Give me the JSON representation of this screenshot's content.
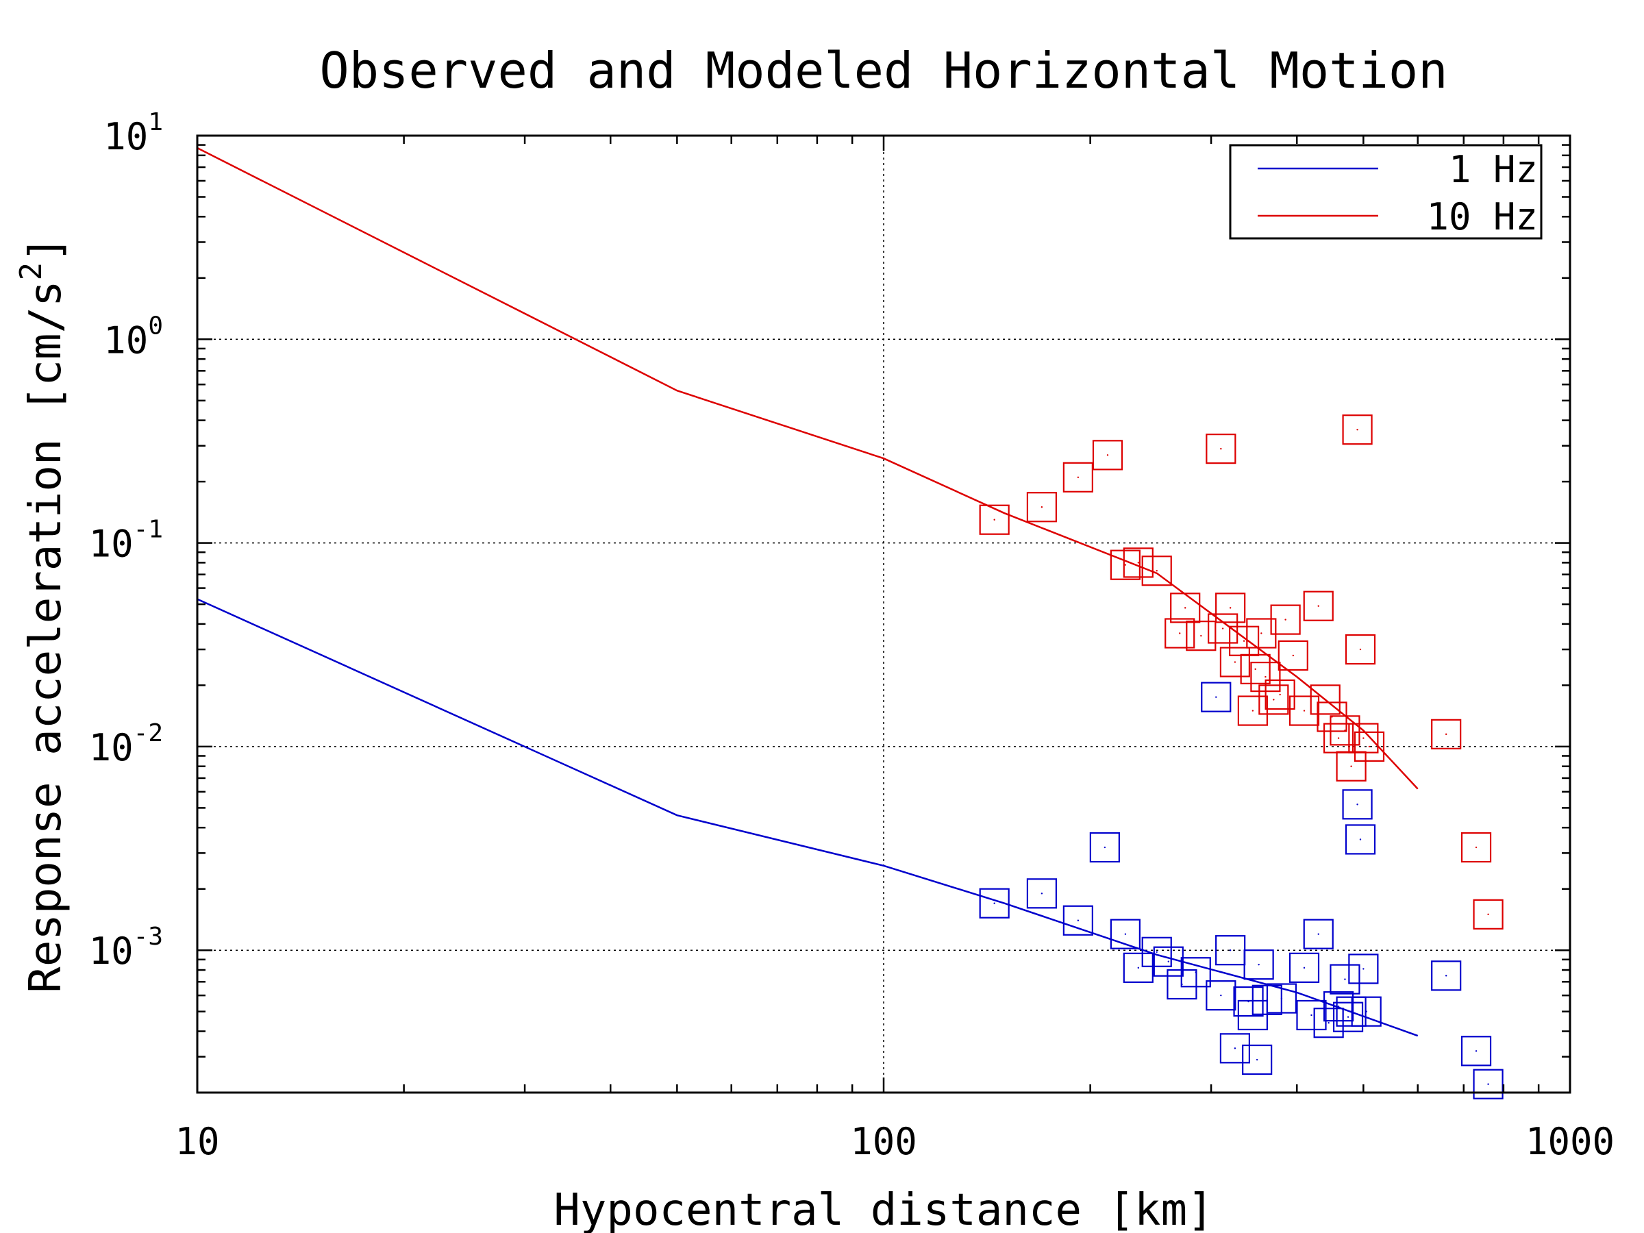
{
  "chart_data": {
    "type": "scatter",
    "title": "Observed and Modeled Horizontal Motion",
    "xlabel": "Hypocentral distance [km]",
    "ylabel": "Response acceleration [cm/s^2]",
    "x_scale": "log",
    "y_scale": "log",
    "xlim": [
      10,
      1000
    ],
    "ylim": [
      0.0002,
      10
    ],
    "x_ticks": [
      {
        "value": 10,
        "label": "10"
      },
      {
        "value": 100,
        "label": "100"
      },
      {
        "value": 1000,
        "label": "1000"
      }
    ],
    "y_ticks": [
      {
        "value": 10,
        "base": "10",
        "exp": "1"
      },
      {
        "value": 1,
        "base": "10",
        "exp": "0"
      },
      {
        "value": 0.1,
        "base": "10",
        "exp": "-1"
      },
      {
        "value": 0.01,
        "base": "10",
        "exp": "-2"
      },
      {
        "value": 0.001,
        "base": "10",
        "exp": "-3"
      }
    ],
    "grid": true,
    "legend_position": "top-right",
    "series": [
      {
        "name": "1 Hz",
        "kind": "line",
        "color": "#0000cc",
        "points": [
          [
            10,
            0.053
          ],
          [
            50,
            0.0046
          ],
          [
            100,
            0.0026
          ],
          [
            150,
            0.0017
          ],
          [
            250,
            0.00095
          ],
          [
            400,
            0.00062
          ],
          [
            600,
            0.00038
          ]
        ]
      },
      {
        "name": "10 Hz",
        "kind": "line",
        "color": "#dd0000",
        "points": [
          [
            10,
            8.7
          ],
          [
            50,
            0.56
          ],
          [
            100,
            0.26
          ],
          [
            150,
            0.14
          ],
          [
            250,
            0.071
          ],
          [
            400,
            0.022
          ],
          [
            500,
            0.012
          ],
          [
            600,
            0.0062
          ]
        ]
      },
      {
        "name": "",
        "kind": "markers",
        "color": "#dd0000",
        "points": [
          [
            145,
            0.13
          ],
          [
            170,
            0.15
          ],
          [
            192,
            0.21
          ],
          [
            212,
            0.27
          ],
          [
            225,
            0.078
          ],
          [
            235,
            0.08
          ],
          [
            250,
            0.073
          ],
          [
            270,
            0.036
          ],
          [
            275,
            0.048
          ],
          [
            290,
            0.035
          ],
          [
            310,
            0.29
          ],
          [
            312,
            0.038
          ],
          [
            320,
            0.048
          ],
          [
            325,
            0.026
          ],
          [
            335,
            0.033
          ],
          [
            345,
            0.015
          ],
          [
            348,
            0.024
          ],
          [
            355,
            0.036
          ],
          [
            360,
            0.022
          ],
          [
            370,
            0.017
          ],
          [
            378,
            0.018
          ],
          [
            385,
            0.042
          ],
          [
            395,
            0.028
          ],
          [
            410,
            0.015
          ],
          [
            430,
            0.049
          ],
          [
            440,
            0.017
          ],
          [
            450,
            0.014
          ],
          [
            460,
            0.011
          ],
          [
            470,
            0.012
          ],
          [
            480,
            0.008
          ],
          [
            490,
            0.36
          ],
          [
            495,
            0.03
          ],
          [
            500,
            0.011
          ],
          [
            510,
            0.01
          ],
          [
            660,
            0.0115
          ],
          [
            730,
            0.0032
          ],
          [
            760,
            0.0015
          ]
        ]
      },
      {
        "name": "",
        "kind": "markers",
        "color": "#0000cc",
        "points": [
          [
            145,
            0.0017
          ],
          [
            170,
            0.0019
          ],
          [
            192,
            0.0014
          ],
          [
            210,
            0.0032
          ],
          [
            225,
            0.0012
          ],
          [
            235,
            0.00082
          ],
          [
            250,
            0.00098
          ],
          [
            260,
            0.00088
          ],
          [
            272,
            0.00068
          ],
          [
            285,
            0.00078
          ],
          [
            305,
            0.0175
          ],
          [
            310,
            0.0006
          ],
          [
            320,
            0.001
          ],
          [
            325,
            0.00033
          ],
          [
            340,
            0.00056
          ],
          [
            345,
            0.00048
          ],
          [
            350,
            0.00029
          ],
          [
            352,
            0.00085
          ],
          [
            362,
            0.00057
          ],
          [
            380,
            0.00058
          ],
          [
            410,
            0.00082
          ],
          [
            420,
            0.00048
          ],
          [
            430,
            0.0012
          ],
          [
            445,
            0.00044
          ],
          [
            460,
            0.00053
          ],
          [
            470,
            0.00072
          ],
          [
            475,
            0.00047
          ],
          [
            480,
            0.0005
          ],
          [
            490,
            0.0052
          ],
          [
            495,
            0.0035
          ],
          [
            500,
            0.00081
          ],
          [
            505,
            0.0005
          ],
          [
            660,
            0.00075
          ],
          [
            730,
            0.00032
          ],
          [
            760,
            0.00022
          ]
        ]
      }
    ],
    "legend": [
      {
        "label": "1 Hz",
        "color": "#0000cc"
      },
      {
        "label": "10 Hz",
        "color": "#dd0000"
      }
    ]
  }
}
